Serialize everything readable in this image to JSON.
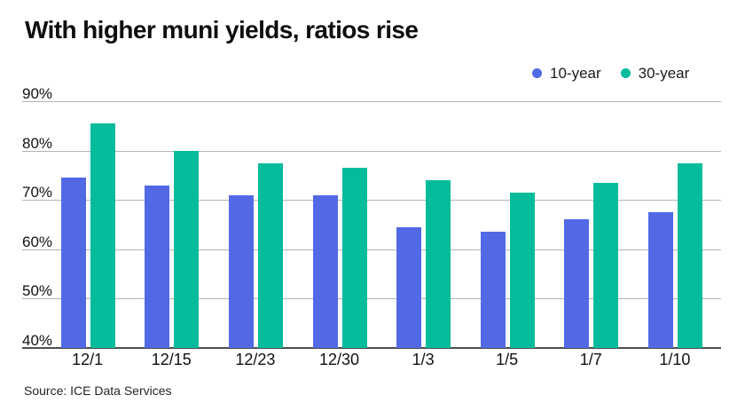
{
  "title": "With higher muni yields, ratios rise",
  "source": "Source: ICE Data Services",
  "legend": {
    "items": [
      {
        "label": "10-year",
        "color": "#5269e6"
      },
      {
        "label": "30-year",
        "color": "#04bc9c"
      }
    ]
  },
  "colors": {
    "series_10_year": "#5269e6",
    "series_30_year": "#04bc9c",
    "gridline": "#b3b3b3",
    "axis_baseline": "#4f4f4f",
    "text": "#111111"
  },
  "chart_data": {
    "type": "bar",
    "title": "With higher muni yields, ratios rise",
    "categories": [
      "12/1",
      "12/15",
      "12/23",
      "12/30",
      "1/3",
      "1/5",
      "1/7",
      "1/10"
    ],
    "series": [
      {
        "name": "10-year",
        "color": "#5269e6",
        "values": [
          74.5,
          73,
          71,
          71,
          64.5,
          63.5,
          66,
          67.5
        ]
      },
      {
        "name": "30-year",
        "color": "#04bc9c",
        "values": [
          85.5,
          80,
          77.5,
          76.5,
          74,
          71.5,
          73.5,
          77.5
        ]
      }
    ],
    "xlabel": "",
    "ylabel": "",
    "ylim": [
      40,
      90
    ],
    "ytick_step": 10,
    "ytick_suffix": "%",
    "grid": true,
    "legend_position": "top-right",
    "source": "Source: ICE Data Services"
  }
}
